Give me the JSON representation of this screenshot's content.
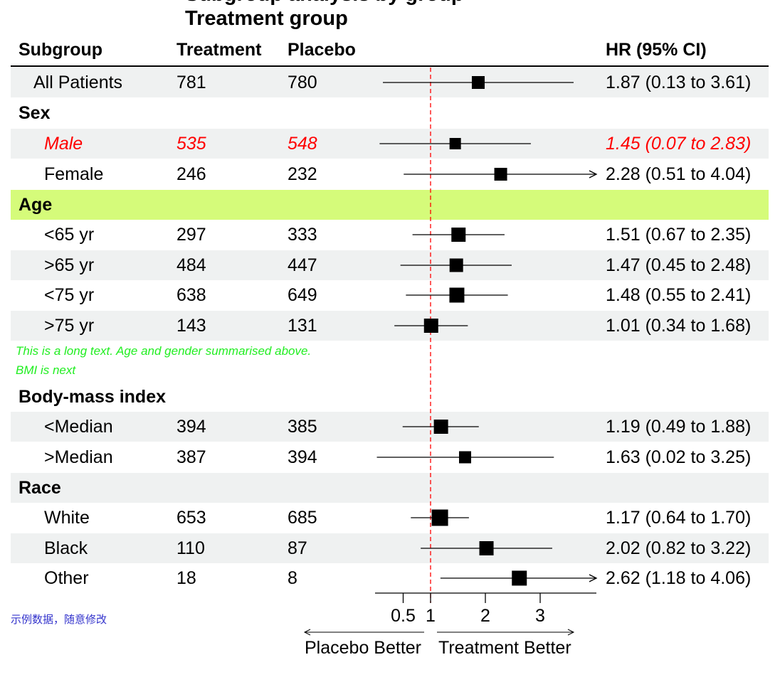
{
  "chart_data": {
    "type": "forest",
    "title_lines": [
      "Subgroup analysis by group",
      "Treatment group"
    ],
    "headers": {
      "subgroup": "Subgroup",
      "treatment": "Treatment",
      "placebo": "Placebo",
      "hr": "HR (95% CI)"
    },
    "xlim": [
      0,
      4
    ],
    "ticks": [
      "0.5",
      "1",
      "2",
      "3"
    ],
    "tick_values": [
      0.5,
      1,
      2,
      3
    ],
    "reference_line": 1,
    "left_label": "Placebo Better",
    "right_label": "Treatment Better",
    "rows": [
      {
        "label": "All Patients",
        "treatment": "781",
        "placebo": "780",
        "hr": 1.87,
        "lo": 0.13,
        "hi": 3.61,
        "text": "1.87 (0.13 to 3.61)",
        "indent": 1,
        "shade": "#eff1f1",
        "size": 18
      },
      {
        "label": "Sex",
        "heading": true
      },
      {
        "label": "Male",
        "treatment": "535",
        "placebo": "548",
        "hr": 1.45,
        "lo": 0.07,
        "hi": 2.83,
        "text": "1.45 (0.07 to 2.83)",
        "indent": 2,
        "shade": "#eff1f1",
        "size": 16,
        "color": "#ff0000",
        "italic": true
      },
      {
        "label": "Female",
        "treatment": "246",
        "placebo": "232",
        "hr": 2.28,
        "lo": 0.51,
        "hi": 4.04,
        "text": "2.28 (0.51 to 4.04)",
        "indent": 2,
        "size": 18
      },
      {
        "label": "Age",
        "heading": true,
        "shade": "#d5fb7a"
      },
      {
        "label": "<65 yr",
        "treatment": "297",
        "placebo": "333",
        "hr": 1.51,
        "lo": 0.67,
        "hi": 2.35,
        "text": "1.51 (0.67 to 2.35)",
        "indent": 2,
        "size": 20
      },
      {
        "label": ">65 yr",
        "treatment": "484",
        "placebo": "447",
        "hr": 1.47,
        "lo": 0.45,
        "hi": 2.48,
        "text": "1.47 (0.45 to 2.48)",
        "indent": 2,
        "shade": "#eff1f1",
        "size": 19
      },
      {
        "label": "<75 yr",
        "treatment": "638",
        "placebo": "649",
        "hr": 1.48,
        "lo": 0.55,
        "hi": 2.41,
        "text": "1.48 (0.55 to 2.41)",
        "indent": 2,
        "size": 21
      },
      {
        "label": ">75 yr",
        "treatment": "143",
        "placebo": "131",
        "hr": 1.01,
        "lo": 0.34,
        "hi": 1.68,
        "text": "1.01 (0.34 to 1.68)",
        "indent": 2,
        "shade": "#eff1f1",
        "size": 20
      },
      {
        "note": [
          "This is a long text. Age and gender summarised above.",
          "BMI is next"
        ]
      },
      {
        "label": "Body-mass index",
        "heading": true
      },
      {
        "label": "<Median",
        "treatment": "394",
        "placebo": "385",
        "hr": 1.19,
        "lo": 0.49,
        "hi": 1.88,
        "text": "1.19 (0.49 to 1.88)",
        "indent": 2,
        "shade": "#eff1f1",
        "size": 20
      },
      {
        "label": ">Median",
        "treatment": "387",
        "placebo": "394",
        "hr": 1.63,
        "lo": 0.02,
        "hi": 3.25,
        "text": "1.63 (0.02 to 3.25)",
        "indent": 2,
        "size": 17
      },
      {
        "label": "Race",
        "heading": true,
        "shade": "#eff1f1"
      },
      {
        "label": "White",
        "treatment": "653",
        "placebo": "685",
        "hr": 1.17,
        "lo": 0.64,
        "hi": 1.7,
        "text": "1.17 (0.64 to 1.70)",
        "indent": 2,
        "size": 23
      },
      {
        "label": "Black",
        "treatment": "110",
        "placebo": "87",
        "hr": 2.02,
        "lo": 0.82,
        "hi": 3.22,
        "text": "2.02 (0.82 to 3.22)",
        "indent": 2,
        "shade": "#eff1f1",
        "size": 20
      },
      {
        "label": "Other",
        "treatment": "18",
        "placebo": "8",
        "hr": 2.62,
        "lo": 1.18,
        "hi": 4.06,
        "text": "2.62 (1.18 to 4.06)",
        "indent": 2,
        "size": 21
      }
    ]
  },
  "footnote": "示例数据，随意修改"
}
